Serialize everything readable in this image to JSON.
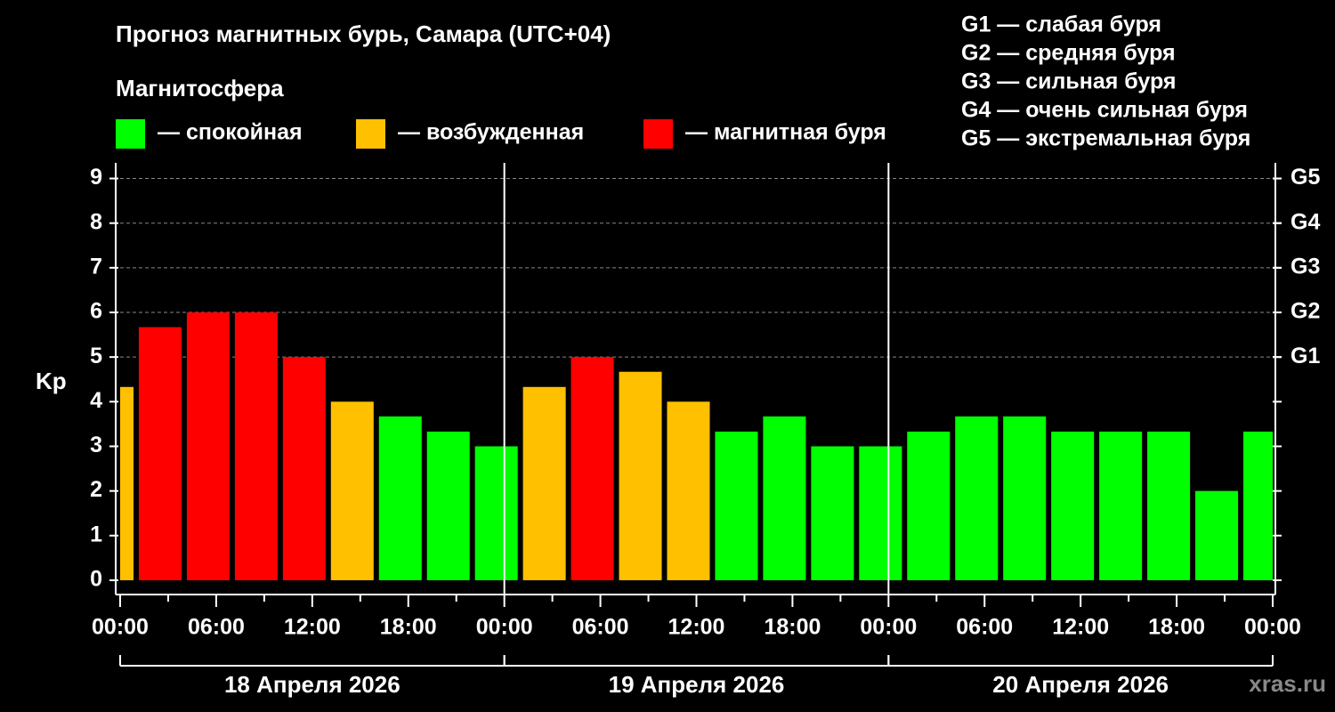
{
  "chart_data": {
    "type": "bar",
    "title": "Прогноз магнитных бурь, Самара (UTC+04)",
    "legend_title": "Магнитосфера",
    "legend": [
      {
        "label": "— спокойная",
        "color": "#00ff00"
      },
      {
        "label": "— возбужденная",
        "color": "#ffc000"
      },
      {
        "label": "— магнитная буря",
        "color": "#ff0000"
      }
    ],
    "scale_notes": [
      "G1 — слабая буря",
      "G2 — средняя буря",
      "G3 — сильная буря",
      "G4 — очень сильная буря",
      "G5 — экстремальная буря"
    ],
    "ylabel": "Kp",
    "x": [
      -0.5,
      2.5,
      5.5,
      8.5,
      11.5,
      14.5,
      17.5,
      20.5,
      23.5,
      26.5,
      29.5,
      32.5,
      35.5,
      38.5,
      41.5,
      44.5,
      47.5,
      50.5,
      53.5,
      56.5,
      59.5,
      62.5,
      65.5,
      68.5,
      71.5
    ],
    "values": [
      4.33,
      5.67,
      6,
      6,
      5,
      4,
      3.67,
      3.33,
      3,
      4.33,
      5,
      4.67,
      4,
      3.33,
      3.67,
      3,
      3,
      3.33,
      3.67,
      3.67,
      3.33,
      3.33,
      3.33,
      2,
      3.33
    ],
    "colors": [
      "#ffc000",
      "#ff0000",
      "#ff0000",
      "#ff0000",
      "#ff0000",
      "#ffc000",
      "#00ff00",
      "#00ff00",
      "#00ff00",
      "#ffc000",
      "#ff0000",
      "#ffc000",
      "#ffc000",
      "#00ff00",
      "#00ff00",
      "#00ff00",
      "#00ff00",
      "#00ff00",
      "#00ff00",
      "#00ff00",
      "#00ff00",
      "#00ff00",
      "#00ff00",
      "#00ff00",
      "#00ff00"
    ],
    "xlim": [
      0,
      72
    ],
    "xticks": [
      {
        "value": 0,
        "label": "00:00"
      },
      {
        "value": 6,
        "label": "06:00"
      },
      {
        "value": 12,
        "label": "12:00"
      },
      {
        "value": 18,
        "label": "18:00"
      },
      {
        "value": 24,
        "label": "00:00"
      },
      {
        "value": 30,
        "label": "06:00"
      },
      {
        "value": 36,
        "label": "12:00"
      },
      {
        "value": 42,
        "label": "18:00"
      },
      {
        "value": 48,
        "label": "00:00"
      },
      {
        "value": 54,
        "label": "06:00"
      },
      {
        "value": 60,
        "label": "12:00"
      },
      {
        "value": 66,
        "label": "18:00"
      },
      {
        "value": 72,
        "label": "00:00"
      }
    ],
    "xminorticks": [
      3,
      9,
      15,
      21,
      27,
      33,
      39,
      45,
      51,
      57,
      63,
      69
    ],
    "days": [
      {
        "label": "18 Апреля 2026",
        "range": [
          0,
          24
        ]
      },
      {
        "label": "19 Апреля 2026",
        "range": [
          24,
          48
        ]
      },
      {
        "label": "20 Апреля 2026",
        "range": [
          48,
          72
        ]
      }
    ],
    "ylim": [
      -0.32,
      9.35
    ],
    "yticks": [
      0,
      1,
      2,
      3,
      4,
      5,
      6,
      7,
      8,
      9
    ],
    "y2ticks": [
      {
        "value": 5,
        "label": "G1"
      },
      {
        "value": 6,
        "label": "G2"
      },
      {
        "value": 7,
        "label": "G3"
      },
      {
        "value": 8,
        "label": "G4"
      },
      {
        "value": 9,
        "label": "G5"
      }
    ],
    "grid": true,
    "watermark": "xras.ru"
  }
}
